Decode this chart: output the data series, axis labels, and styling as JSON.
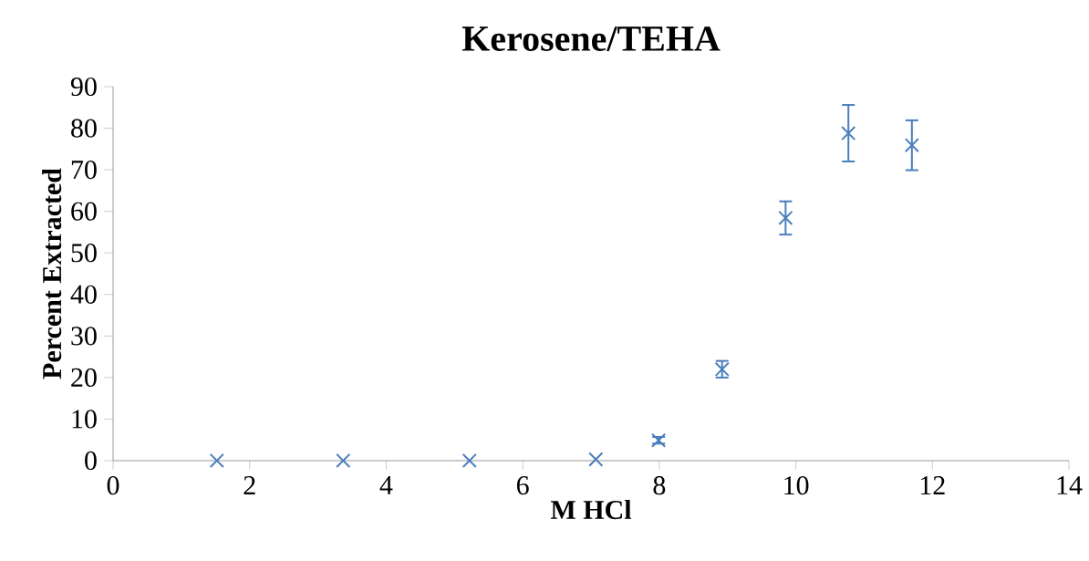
{
  "chart_data": {
    "type": "scatter",
    "title": "Kerosene/TEHA",
    "xlabel": "M HCl",
    "ylabel": "Percent Extracted",
    "x": [
      1.52,
      3.37,
      5.22,
      7.07,
      7.99,
      8.92,
      9.85,
      10.77,
      11.7
    ],
    "values": [
      0,
      0,
      0,
      0.3,
      4.9,
      22,
      58.4,
      78.8,
      75.9
    ],
    "errors": [
      null,
      null,
      null,
      null,
      0.8,
      2,
      4,
      6.8,
      6
    ],
    "color": "#4a7ebb",
    "marker": "cross",
    "xlim": [
      0,
      14
    ],
    "xticks": [
      0,
      2,
      4,
      6,
      8,
      10,
      12,
      14
    ],
    "ylim": [
      0,
      90
    ],
    "yticks": [
      0,
      10,
      20,
      30,
      40,
      50,
      60,
      70,
      80,
      90
    ]
  }
}
